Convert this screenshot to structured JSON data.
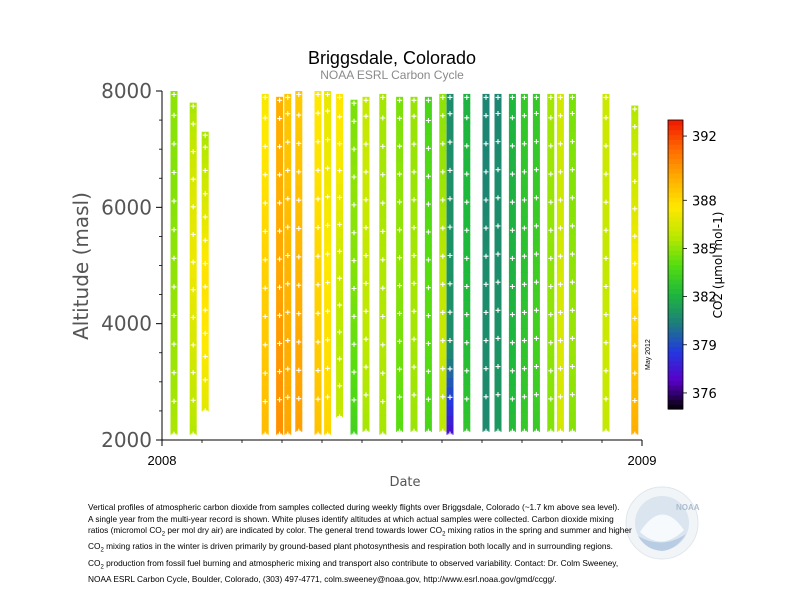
{
  "chart_data": {
    "type": "heatmap",
    "title": "Briggsdale, Colorado",
    "subtitle": "NOAA ESRL Carbon Cycle",
    "xlabel": "Date",
    "ylabel": "Altitude (masl)",
    "xlim": [
      2008.0,
      2009.0
    ],
    "ylim": [
      2000,
      8000
    ],
    "x_ticks": [
      {
        "value": 2008.0,
        "label": "2008"
      },
      {
        "value": 2009.0,
        "label": "2009"
      }
    ],
    "y_ticks": [
      {
        "value": 2000,
        "label": "2000"
      },
      {
        "value": 4000,
        "label": "4000"
      },
      {
        "value": 6000,
        "label": "6000"
      },
      {
        "value": 8000,
        "label": "8000"
      }
    ],
    "colorbar": {
      "label": "CO2 (µmol mol-1)",
      "range": [
        375,
        393
      ],
      "ticks": [
        376,
        379,
        382,
        385,
        388,
        392
      ],
      "colors": [
        "#000000",
        "#5a00c8",
        "#2238e0",
        "#1d7f7a",
        "#1eb83c",
        "#55dd10",
        "#bde800",
        "#ffe800",
        "#ffae00",
        "#ff6a00",
        "#f01800"
      ]
    },
    "profiles": [
      {
        "date": 2008.025,
        "alt": [
          2100,
          8000
        ],
        "co2": [
          385.5,
          385.2,
          385.0,
          384.8,
          385.0
        ]
      },
      {
        "date": 2008.065,
        "alt": [
          2100,
          7800
        ],
        "co2": [
          385.6,
          386.4,
          387.2,
          386.6,
          385.4
        ]
      },
      {
        "date": 2008.09,
        "alt": [
          2500,
          7300
        ],
        "co2": [
          386.8,
          387.6,
          387.8,
          386.6,
          385.4
        ]
      },
      {
        "date": 2008.215,
        "alt": [
          2100,
          7950
        ],
        "co2": [
          389.0,
          388.6,
          388.3,
          387.8,
          387.4
        ]
      },
      {
        "date": 2008.245,
        "alt": [
          2100,
          7900
        ],
        "co2": [
          390.2,
          390.0,
          389.6,
          389.4,
          389.4
        ]
      },
      {
        "date": 2008.262,
        "alt": [
          2100,
          7950
        ],
        "co2": [
          389.6,
          389.4,
          389.2,
          388.8,
          388.6
        ]
      },
      {
        "date": 2008.285,
        "alt": [
          2150,
          8000
        ],
        "co2": [
          389.8,
          389.6,
          389.2,
          388.8,
          388.5
        ]
      },
      {
        "date": 2008.325,
        "alt": [
          2100,
          8000
        ],
        "co2": [
          388.8,
          388.5,
          388.2,
          387.8,
          387.6
        ]
      },
      {
        "date": 2008.345,
        "alt": [
          2100,
          8000
        ],
        "co2": [
          388.2,
          387.9,
          387.6,
          387.2,
          387.0
        ]
      },
      {
        "date": 2008.37,
        "alt": [
          2400,
          7950
        ],
        "co2": [
          386.0,
          385.7,
          386.3,
          387.3,
          387.7
        ]
      },
      {
        "date": 2008.4,
        "alt": [
          2100,
          7850
        ],
        "co2": [
          383.4,
          384.2,
          384.8,
          385.0,
          384.6
        ]
      },
      {
        "date": 2008.425,
        "alt": [
          2150,
          7900
        ],
        "co2": [
          385.4,
          385.8,
          386.0,
          386.2,
          386.0
        ]
      },
      {
        "date": 2008.46,
        "alt": [
          2100,
          7950
        ],
        "co2": [
          385.4,
          385.6,
          385.6,
          385.4,
          385.4
        ]
      },
      {
        "date": 2008.495,
        "alt": [
          2150,
          7900
        ],
        "co2": [
          384.0,
          384.5,
          385.0,
          385.0,
          384.6
        ]
      },
      {
        "date": 2008.525,
        "alt": [
          2150,
          7900
        ],
        "co2": [
          385.2,
          385.4,
          385.4,
          385.2,
          385.2
        ]
      },
      {
        "date": 2008.555,
        "alt": [
          2150,
          7900
        ],
        "co2": [
          383.6,
          384.0,
          384.0,
          383.8,
          383.6
        ]
      },
      {
        "date": 2008.585,
        "alt": [
          2150,
          7950
        ],
        "co2": [
          385.8,
          386.2,
          385.8,
          385.2,
          385.0
        ]
      },
      {
        "date": 2008.6,
        "alt": [
          2100,
          7950
        ],
        "co2": [
          377.2,
          380.8,
          381.0,
          380.9,
          380.8
        ]
      },
      {
        "date": 2008.635,
        "alt": [
          2150,
          7950
        ],
        "co2": [
          382.8,
          382.4,
          382.2,
          382.2,
          382.0
        ]
      },
      {
        "date": 2008.675,
        "alt": [
          2150,
          7950
        ],
        "co2": [
          380.7,
          380.8,
          380.8,
          380.6,
          380.6
        ]
      },
      {
        "date": 2008.7,
        "alt": [
          2150,
          7950
        ],
        "co2": [
          381.2,
          381.0,
          380.8,
          380.8,
          380.6
        ]
      },
      {
        "date": 2008.73,
        "alt": [
          2150,
          7950
        ],
        "co2": [
          382.4,
          382.2,
          382.0,
          382.0,
          382.2
        ]
      },
      {
        "date": 2008.755,
        "alt": [
          2150,
          7950
        ],
        "co2": [
          383.0,
          382.8,
          382.6,
          382.8,
          383.0
        ]
      },
      {
        "date": 2008.78,
        "alt": [
          2150,
          7950
        ],
        "co2": [
          383.0,
          383.4,
          383.2,
          383.0,
          383.0
        ]
      },
      {
        "date": 2008.81,
        "alt": [
          2150,
          7950
        ],
        "co2": [
          384.8,
          385.0,
          385.0,
          385.2,
          385.4
        ]
      },
      {
        "date": 2008.83,
        "alt": [
          2150,
          7950
        ],
        "co2": [
          386.4,
          386.6,
          386.4,
          386.2,
          386.4
        ]
      },
      {
        "date": 2008.855,
        "alt": [
          2150,
          7950
        ],
        "co2": [
          384.8,
          385.2,
          385.0,
          384.8,
          384.6
        ]
      },
      {
        "date": 2008.925,
        "alt": [
          2150,
          7950
        ],
        "co2": [
          386.0,
          386.2,
          386.0,
          386.2,
          386.2
        ]
      },
      {
        "date": 2008.985,
        "alt": [
          2100,
          7750
        ],
        "co2": [
          389.4,
          388.6,
          387.6,
          386.4,
          385.6
        ]
      }
    ]
  },
  "caption_lines": [
    "Vertical profiles of atmospheric carbon dioxide from samples collected during weekly flights over Briggsdale, Colorado (~1.7 km above sea level).",
    "A single year from the multi-year record is shown. White pluses identify altitudes at which actual samples were collected. Carbon dioxide mixing",
    "ratios (micromol CO2 per mol dry air) are indicated by color. The general trend towards lower CO2 mixing ratios in the spring and summer and higher",
    "CO2 mixing ratios in the winter is driven primarily by ground-based plant photosynthesis and respiration both locally and in surrounding regions.",
    "CO2 production from fossil fuel burning and atmospheric mixing and transport also contribute to observed variability. Contact: Dr. Colm Sweeney,",
    "NOAA ESRL Carbon Cycle, Boulder, Colorado, (303) 497-4771, colm.sweeney@noaa.gov, http://www.esrl.noaa.gov/gmd/ccgg/."
  ],
  "stamp": "May 2012",
  "logo_text": "NOAA",
  "colors": {
    "text": "#000000",
    "axis_label": "#555555",
    "subtitle": "#8a8a8a",
    "marker": "#ffffff"
  }
}
